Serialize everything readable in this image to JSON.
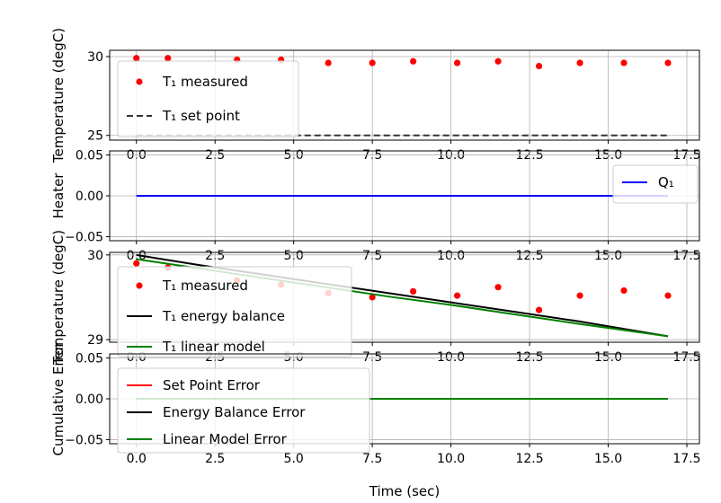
{
  "chart_data": [
    {
      "type": "scatter",
      "xlim": [
        -0.85,
        17.9
      ],
      "ylim": [
        24.7,
        30.4
      ],
      "yticks": [
        25,
        30
      ],
      "xticks": [
        0.0,
        2.5,
        5.0,
        7.5,
        10.0,
        12.5,
        15.0,
        17.5
      ],
      "xticklabels": [
        "0.0",
        "2.5",
        "5.0",
        "7.5",
        "10.0",
        "12.5",
        "15.0",
        "17.5"
      ],
      "ylabel": "Temperature (degC)",
      "grid": true,
      "legend_position": "center-left",
      "series": [
        {
          "name": "T₁ measured",
          "kind": "markers",
          "color": "#ff0000",
          "x": [
            0.0,
            1.0,
            3.2,
            4.6,
            6.1,
            7.5,
            8.8,
            10.2,
            11.5,
            12.8,
            14.1,
            15.5,
            16.9
          ],
          "y": [
            29.9,
            29.9,
            29.8,
            29.8,
            29.6,
            29.6,
            29.7,
            29.6,
            29.7,
            29.4,
            29.6,
            29.6,
            29.6
          ]
        },
        {
          "name": "T₁ set point",
          "kind": "dashed",
          "color": "#333333",
          "x": [
            0.0,
            16.9
          ],
          "y": [
            25.0,
            25.0
          ]
        }
      ]
    },
    {
      "type": "line",
      "xlim": [
        -0.85,
        17.9
      ],
      "ylim": [
        -0.055,
        0.055
      ],
      "yticks": [
        -0.05,
        0.0,
        0.05
      ],
      "yticklabels": [
        "−0.05",
        "0.00",
        "0.05"
      ],
      "xticks": [
        0.0,
        2.5,
        5.0,
        7.5,
        10.0,
        12.5,
        15.0,
        17.5
      ],
      "xticklabels": [
        "0.0",
        "2.5",
        "5.0",
        "7.5",
        "10.0",
        "12.5",
        "15.0",
        "17.5"
      ],
      "ylabel": "Heater",
      "grid": true,
      "legend_position": "top-right",
      "series": [
        {
          "name": "Q₁",
          "kind": "line",
          "color": "#0000ff",
          "x": [
            0.0,
            16.9
          ],
          "y": [
            0.0,
            0.0
          ]
        }
      ]
    },
    {
      "type": "line",
      "xlim": [
        -0.85,
        17.9
      ],
      "ylim": [
        28.97,
        30.03
      ],
      "yticks": [
        29,
        30
      ],
      "xticks": [
        0.0,
        2.5,
        5.0,
        7.5,
        10.0,
        12.5,
        15.0,
        17.5
      ],
      "xticklabels": [
        "0.0",
        "2.5",
        "5.0",
        "7.5",
        "10.0",
        "12.5",
        "15.0",
        "17.5"
      ],
      "ylabel": "Temperature (degC)",
      "grid": true,
      "legend_position": "center-left",
      "series": [
        {
          "name": "T₁ measured",
          "kind": "markers",
          "color": "#ff0000",
          "x": [
            0.0,
            1.0,
            3.2,
            4.6,
            6.1,
            7.5,
            8.8,
            10.2,
            11.5,
            12.8,
            14.1,
            15.5,
            16.9
          ],
          "y": [
            29.9,
            29.85,
            29.7,
            29.65,
            29.55,
            29.5,
            29.57,
            29.52,
            29.62,
            29.35,
            29.52,
            29.58,
            29.52
          ]
        },
        {
          "name": "T₁ energy balance",
          "kind": "line",
          "color": "#000000",
          "x": [
            0.0,
            2.0,
            4.0,
            6.0,
            8.0,
            10.0,
            12.0,
            14.0,
            16.9
          ],
          "y": [
            30.0,
            29.88,
            29.77,
            29.66,
            29.55,
            29.44,
            29.33,
            29.22,
            29.04
          ]
        },
        {
          "name": "T₁ linear model",
          "kind": "line",
          "color": "#008000",
          "x": [
            0.0,
            2.0,
            4.0,
            6.0,
            8.0,
            10.0,
            12.0,
            14.0,
            16.9
          ],
          "y": [
            29.95,
            29.84,
            29.73,
            29.62,
            29.51,
            29.41,
            29.3,
            29.19,
            29.04
          ]
        }
      ]
    },
    {
      "type": "line",
      "xlim": [
        -0.85,
        17.9
      ],
      "ylim": [
        -0.055,
        0.055
      ],
      "yticks": [
        -0.05,
        0.0,
        0.05
      ],
      "yticklabels": [
        "−0.05",
        "0.00",
        "0.05"
      ],
      "xticks": [
        0.0,
        2.5,
        5.0,
        7.5,
        10.0,
        12.5,
        15.0,
        17.5
      ],
      "xticklabels": [
        "0.0",
        "2.5",
        "5.0",
        "7.5",
        "10.0",
        "12.5",
        "15.0",
        "17.5"
      ],
      "xlabel": "Time (sec)",
      "ylabel": "Cumulative Error",
      "grid": true,
      "legend_position": "left",
      "series": [
        {
          "name": "Set Point Error",
          "kind": "line",
          "color": "#ff0000",
          "x": [
            0.0,
            16.9
          ],
          "y": [
            0.0,
            0.0
          ]
        },
        {
          "name": "Energy Balance Error",
          "kind": "line",
          "color": "#000000",
          "x": [
            0.0,
            16.9
          ],
          "y": [
            0.0,
            0.0
          ]
        },
        {
          "name": "Linear Model Error",
          "kind": "line",
          "color": "#008000",
          "x": [
            0.0,
            16.9
          ],
          "y": [
            0.0,
            0.0
          ]
        }
      ]
    }
  ]
}
